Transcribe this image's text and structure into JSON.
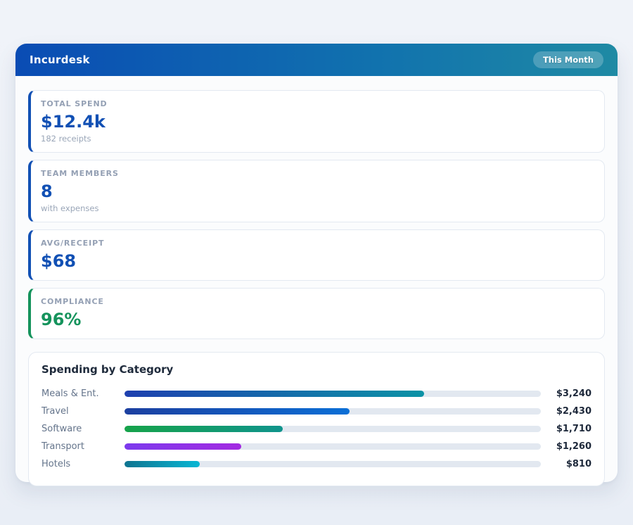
{
  "header": {
    "title": "Incurdesk",
    "period_badge": "This Month"
  },
  "stats": [
    {
      "label": "TOTAL SPEND",
      "value": "$12.4k",
      "sub": "182 receipts",
      "accent": "#1150b4",
      "value_color": "#1150b4"
    },
    {
      "label": "TEAM MEMBERS",
      "value": "8",
      "sub": "with expenses",
      "accent": "#1150b4",
      "value_color": "#1150b4"
    },
    {
      "label": "AVG/RECEIPT",
      "value": "$68",
      "sub": "",
      "accent": "#1150b4",
      "value_color": "#1150b4"
    },
    {
      "label": "COMPLIANCE",
      "value": "96%",
      "sub": "",
      "accent": "#15935c",
      "value_color": "#15935c"
    }
  ],
  "chart_data": {
    "type": "bar",
    "orientation": "horizontal",
    "title": "Spending by Category",
    "categories": [
      "Meals & Ent.",
      "Travel",
      "Software",
      "Transport",
      "Hotels"
    ],
    "values": [
      3240,
      2430,
      1710,
      1260,
      810
    ],
    "value_labels": [
      "$3,240",
      "$2,430",
      "$1,710",
      "$1,260",
      "$810"
    ],
    "xlim": [
      0,
      4500
    ],
    "track_color": "#e2e8f0",
    "bar_colors": [
      [
        "#1e40af",
        "#0c93a6"
      ],
      [
        "#1c3fa0",
        "#0b6fd6"
      ],
      [
        "#16a34a",
        "#0f948c"
      ],
      [
        "#7c3aed",
        "#a32ae1"
      ],
      [
        "#0e7490",
        "#07b6d4"
      ]
    ]
  }
}
